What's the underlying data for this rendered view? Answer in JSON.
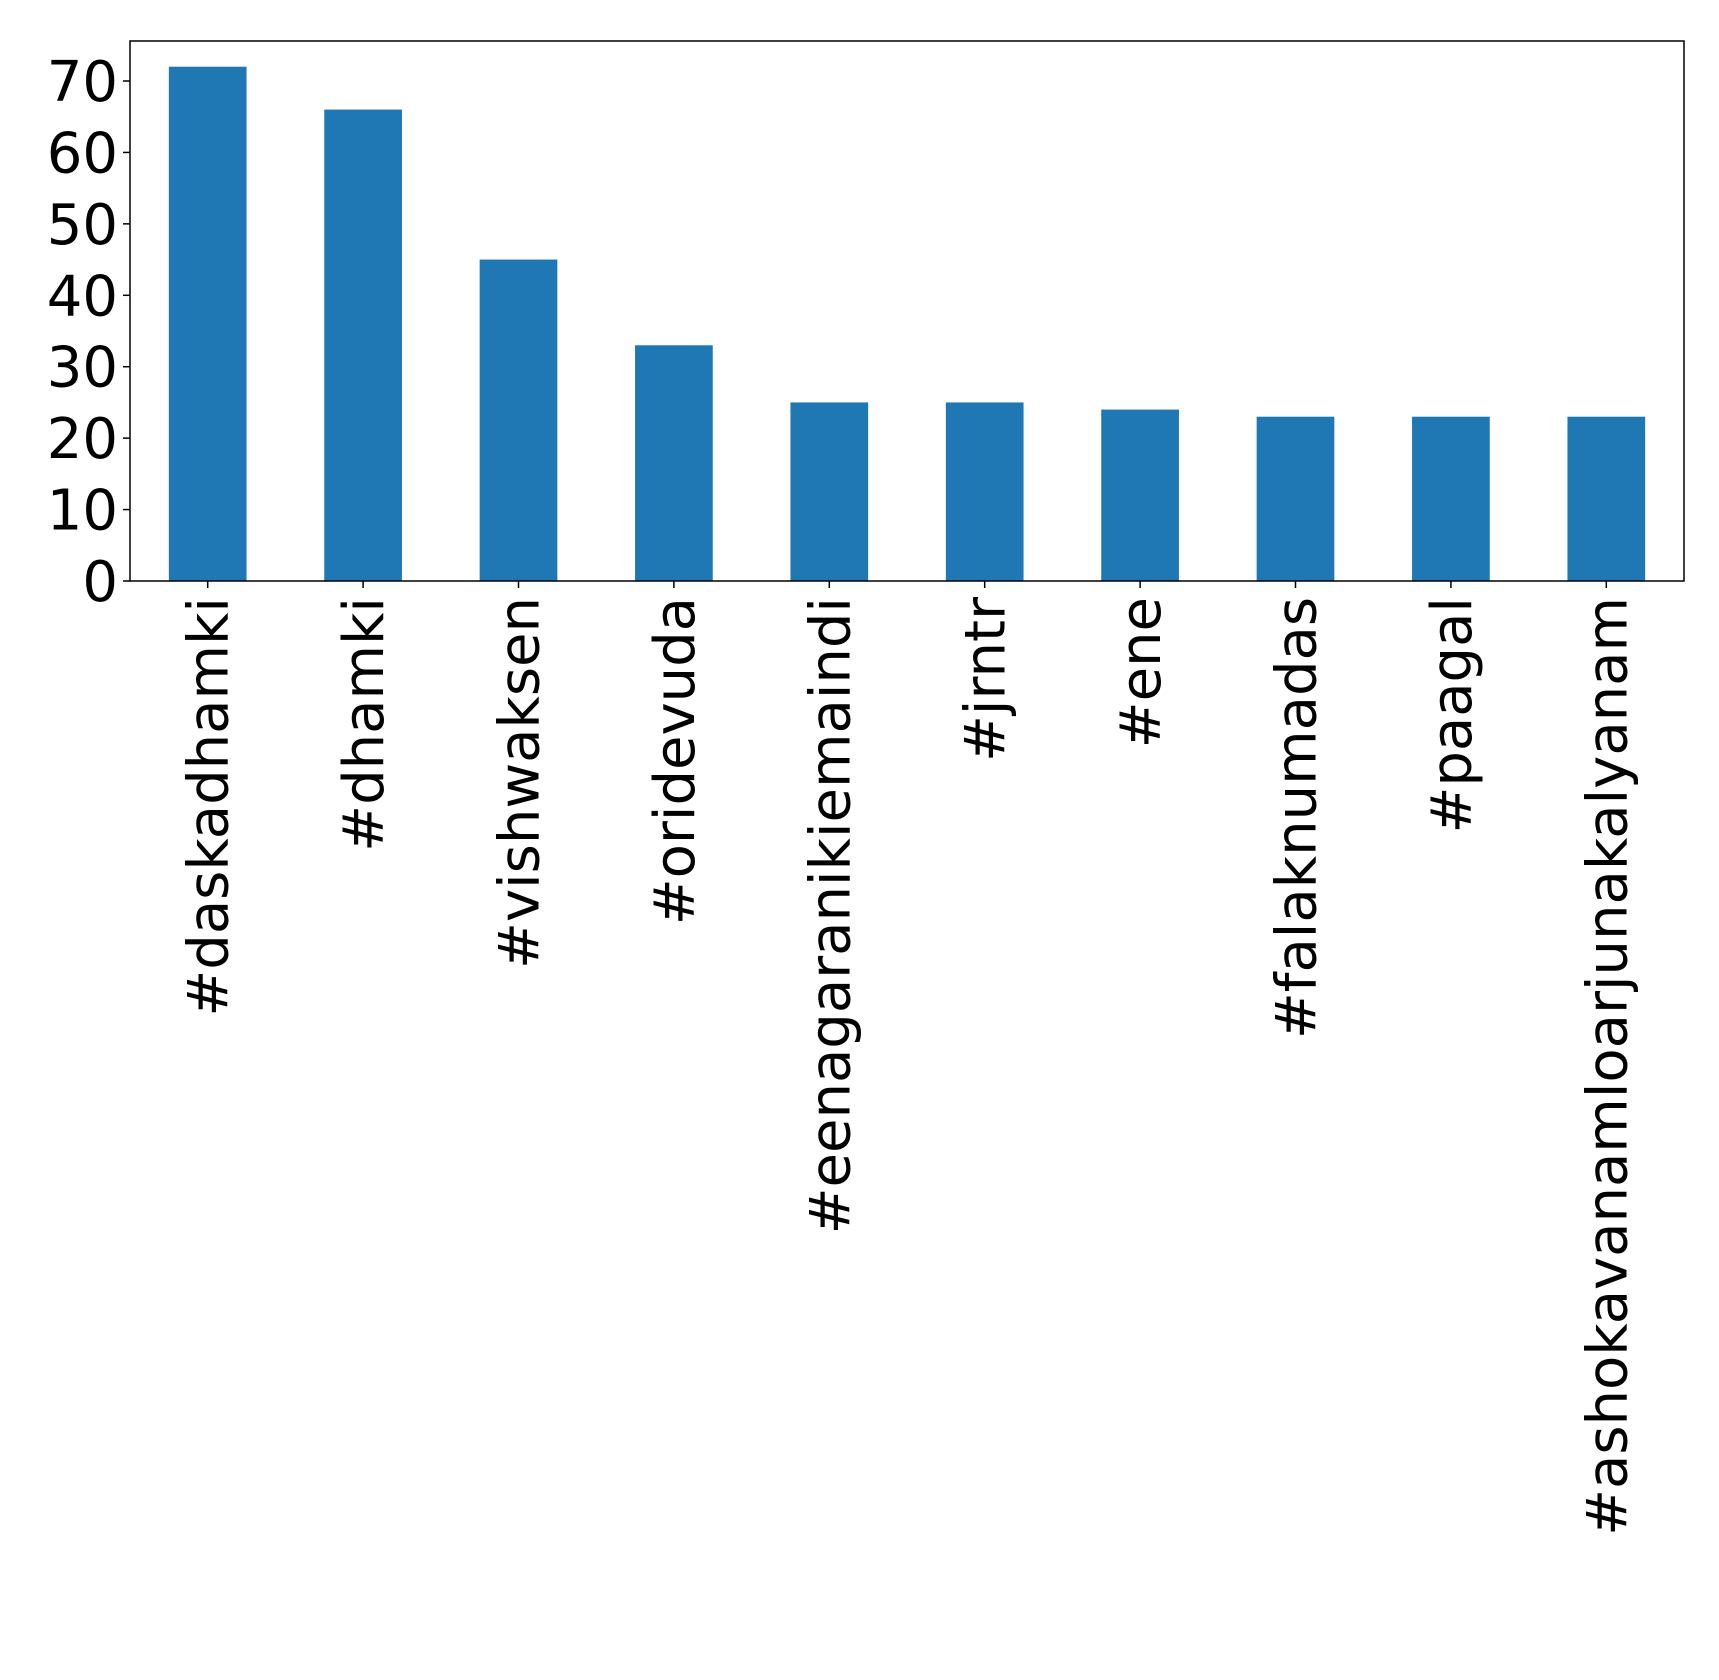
{
  "chart_data": {
    "type": "bar",
    "title": "",
    "xlabel": "",
    "ylabel": "",
    "categories": [
      "#daskadhamki",
      "#dhamki",
      "#vishwaksen",
      "#oridevuda",
      "#eenagaranikiemaindi",
      "#jrntr",
      "#ene",
      "#falaknumadas",
      "#paagal",
      "#ashokavanamloarjunakalyanam"
    ],
    "values": [
      72,
      66,
      45,
      33,
      25,
      25,
      24,
      23,
      23,
      23
    ],
    "ylim": [
      0,
      75.6
    ],
    "yticks": [
      0,
      10,
      20,
      30,
      40,
      50,
      60,
      70
    ],
    "grid": false,
    "legend": "none",
    "bar_color": "#1f77b4"
  }
}
